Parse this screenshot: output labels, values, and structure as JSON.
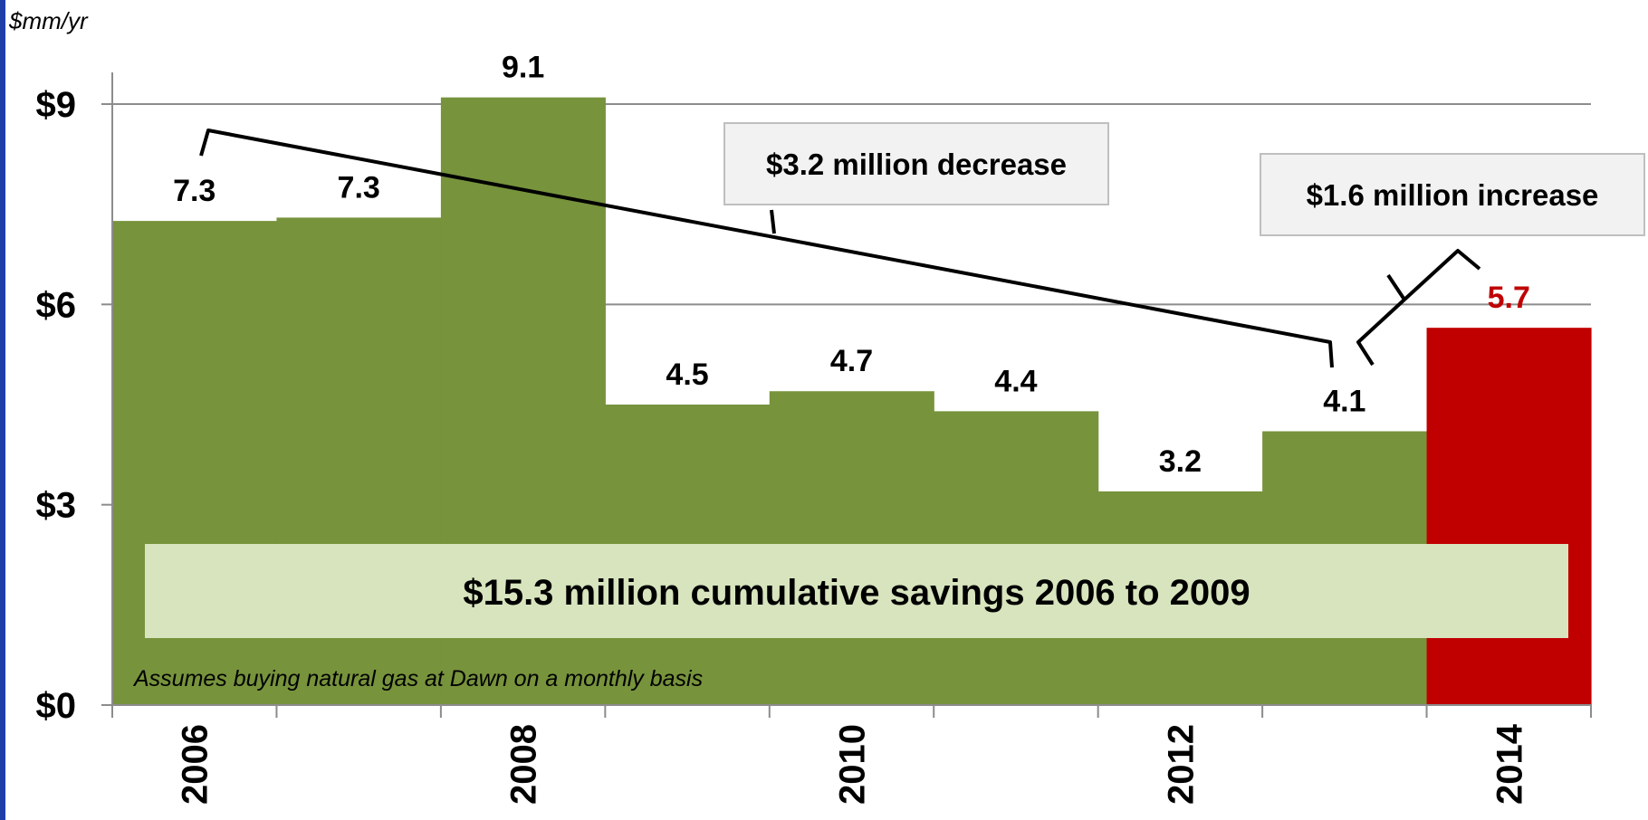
{
  "chart_data": {
    "type": "bar",
    "ylabel": "$mm/yr",
    "ylim": [
      0,
      10.7
    ],
    "yticks": [
      {
        "value": 0,
        "label": "$0"
      },
      {
        "value": 3,
        "label": "$3"
      },
      {
        "value": 6,
        "label": "$6"
      },
      {
        "value": 9,
        "label": "$9"
      }
    ],
    "categories": [
      "2006",
      "2007",
      "2008",
      "2009",
      "2010",
      "2011",
      "2012",
      "2013",
      "2014"
    ],
    "xtick_labels": [
      "2006",
      "",
      "2008",
      "",
      "2010",
      "",
      "2012",
      "",
      "2014"
    ],
    "values": [
      7.25,
      7.3,
      9.1,
      4.5,
      4.7,
      4.4,
      3.2,
      4.1,
      5.65
    ],
    "data_labels": [
      "7.3",
      "7.3",
      "9.1",
      "4.5",
      "4.7",
      "4.4",
      "3.2",
      "4.1",
      "5.7"
    ],
    "bar_colors": [
      "#77933c",
      "#77933c",
      "#77933c",
      "#77933c",
      "#77933c",
      "#77933c",
      "#77933c",
      "#77933c",
      "#c00000"
    ],
    "label_colors": [
      "#000000",
      "#000000",
      "#000000",
      "#000000",
      "#000000",
      "#000000",
      "#000000",
      "#000000",
      "#c00000"
    ],
    "grid": true,
    "annotations": {
      "decrease": "$3.2 million decrease",
      "increase": "$1.6 million increase",
      "savings": "$15.3 million cumulative savings 2006 to 2009",
      "footnote": "Assumes buying natural gas at Dawn on a monthly basis"
    }
  },
  "colors": {
    "bar_green": "#77933c",
    "bar_red": "#c00000",
    "savings_box": "#d7e4bd",
    "callout_box": "#f2f2f2",
    "gridline": "#8c8c8c",
    "border": "#1f3fa8"
  }
}
